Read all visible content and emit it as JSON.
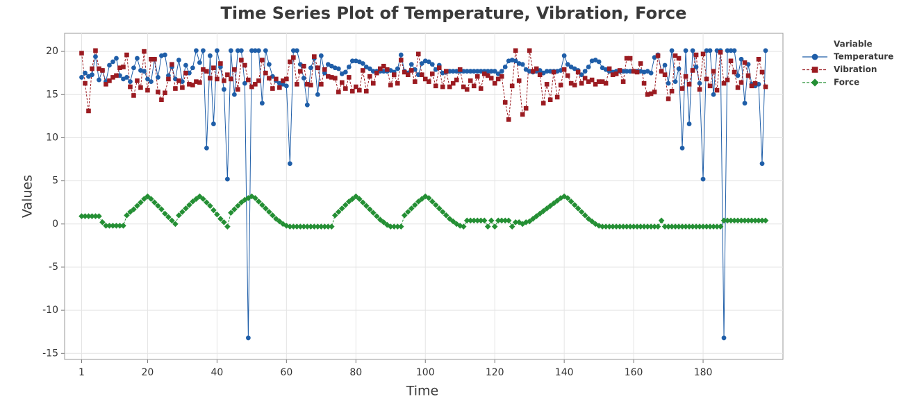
{
  "chart_data": {
    "type": "line",
    "title": "Time Series Plot of Temperature, Vibration, Force",
    "x_label": "Time",
    "y_label": "Values",
    "legend_title": "Variable",
    "legend": "right",
    "grid": true,
    "xlim": [
      -3.9,
      203
    ],
    "xticks": [
      1,
      20,
      40,
      60,
      80,
      100,
      120,
      140,
      160,
      180
    ],
    "ylim": [
      -15.7,
      22.1
    ],
    "yticks": [
      -15,
      -10,
      -5,
      0,
      5,
      10,
      15,
      20
    ],
    "x": [
      1,
      2,
      3,
      4,
      5,
      6,
      7,
      8,
      9,
      10,
      11,
      12,
      13,
      14,
      15,
      16,
      17,
      18,
      19,
      20,
      21,
      22,
      23,
      24,
      25,
      26,
      27,
      28,
      29,
      30,
      31,
      32,
      33,
      34,
      35,
      36,
      37,
      38,
      39,
      40,
      41,
      42,
      43,
      44,
      45,
      46,
      47,
      48,
      49,
      50,
      51,
      52,
      53,
      54,
      55,
      56,
      57,
      58,
      59,
      60,
      61,
      62,
      63,
      64,
      65,
      66,
      67,
      68,
      69,
      70,
      71,
      72,
      73,
      74,
      75,
      76,
      77,
      78,
      79,
      80,
      81,
      82,
      83,
      84,
      85,
      86,
      87,
      88,
      89,
      90,
      91,
      92,
      93,
      94,
      95,
      96,
      97,
      98,
      99,
      100,
      101,
      102,
      103,
      104,
      105,
      106,
      107,
      108,
      109,
      110,
      111,
      112,
      113,
      114,
      115,
      116,
      117,
      118,
      119,
      120,
      121,
      122,
      123,
      124,
      125,
      126,
      127,
      128,
      129,
      130,
      131,
      132,
      133,
      134,
      135,
      136,
      137,
      138,
      139,
      140,
      141,
      142,
      143,
      144,
      145,
      146,
      147,
      148,
      149,
      150,
      151,
      152,
      153,
      154,
      155,
      156,
      157,
      158,
      159,
      160,
      161,
      162,
      163,
      164,
      165,
      166,
      167,
      168,
      169,
      170,
      171,
      172,
      173,
      174,
      175,
      176,
      177,
      178,
      179,
      180,
      181,
      182,
      183,
      184,
      185,
      186,
      187,
      188,
      189,
      190,
      191,
      192,
      193,
      194,
      195,
      196,
      197,
      198
    ],
    "series": [
      {
        "name": "Temperature",
        "color": "#1f5ea8",
        "marker": "circle",
        "dashed": false,
        "values": [
          17.0,
          17.5,
          17.1,
          17.3,
          19.4,
          16.7,
          17.8,
          16.5,
          18.4,
          18.8,
          19.2,
          17.2,
          16.8,
          17.0,
          16.5,
          18.1,
          19.2,
          17.8,
          17.7,
          16.8,
          16.5,
          19.1,
          17.0,
          19.5,
          19.6,
          17.2,
          18.2,
          16.8,
          19.0,
          16.5,
          18.4,
          17.5,
          18.1,
          20.1,
          18.7,
          20.1,
          8.8,
          19.5,
          11.6,
          20.1,
          18.2,
          15.6,
          5.2,
          20.1,
          15.0,
          20.1,
          20.1,
          16.3,
          -13.2,
          20.1,
          20.1,
          20.1,
          14.0,
          20.1,
          18.5,
          17.1,
          16.6,
          16.3,
          16.2,
          16.0,
          7.0,
          20.1,
          20.1,
          18.5,
          16.9,
          13.8,
          18.1,
          19.2,
          15.0,
          19.5,
          17.5,
          18.5,
          18.3,
          18.1,
          18.0,
          17.4,
          17.6,
          18.2,
          18.9,
          18.9,
          18.8,
          18.6,
          18.2,
          18.0,
          17.7,
          17.7,
          17.7,
          17.7,
          17.7,
          17.8,
          17.6,
          18.0,
          19.6,
          17.7,
          17.5,
          18.5,
          17.9,
          17.3,
          18.6,
          18.9,
          18.8,
          18.5,
          17.9,
          18.4,
          17.5,
          17.6,
          17.7,
          17.7,
          17.7,
          17.7,
          17.7,
          17.7,
          17.7,
          17.7,
          17.7,
          17.7,
          17.7,
          17.7,
          17.7,
          17.7,
          17.4,
          17.7,
          18.2,
          18.9,
          19.0,
          18.9,
          18.6,
          18.5,
          17.9,
          17.7,
          17.6,
          17.7,
          17.8,
          17.5,
          17.7,
          17.7,
          17.7,
          17.7,
          17.8,
          19.5,
          18.5,
          18.2,
          18.0,
          17.8,
          17.3,
          17.7,
          18.2,
          18.9,
          19.0,
          18.8,
          18.1,
          17.9,
          17.7,
          17.6,
          17.7,
          17.7,
          17.7,
          17.7,
          17.7,
          17.7,
          17.7,
          17.7,
          17.6,
          17.7,
          17.5,
          19.3,
          19.6,
          17.7,
          18.4,
          16.3,
          20.1,
          16.5,
          18.0,
          8.8,
          20.1,
          11.6,
          20.1,
          18.2,
          16.3,
          5.2,
          20.1,
          20.1,
          15.0,
          20.1,
          20.1,
          -13.2,
          20.1,
          20.1,
          20.1,
          17.2,
          19.1,
          14.0,
          18.5,
          16.2,
          16.0,
          16.2,
          7.0,
          20.1
        ]
      },
      {
        "name": "Vibration",
        "color": "#9b1b21",
        "marker": "square",
        "dashed": true,
        "values": [
          19.8,
          16.3,
          13.1,
          18.0,
          20.1,
          18.0,
          17.8,
          16.2,
          16.6,
          17.0,
          17.2,
          18.1,
          18.2,
          19.6,
          15.9,
          14.9,
          16.6,
          15.8,
          20.0,
          15.5,
          19.1,
          19.1,
          15.3,
          14.4,
          15.2,
          16.8,
          18.5,
          15.7,
          16.6,
          15.8,
          17.5,
          16.2,
          16.1,
          16.5,
          16.4,
          17.9,
          17.7,
          16.9,
          18.1,
          16.8,
          18.6,
          16.6,
          17.3,
          16.8,
          17.9,
          15.6,
          19.0,
          18.4,
          16.7,
          15.9,
          16.2,
          16.6,
          19.0,
          17.5,
          16.9,
          15.7,
          16.8,
          15.8,
          16.6,
          16.8,
          18.8,
          19.3,
          16.2,
          17.7,
          18.3,
          16.2,
          16.1,
          19.4,
          18.1,
          16.2,
          17.9,
          17.1,
          17.0,
          16.9,
          15.3,
          16.4,
          15.7,
          17.0,
          15.4,
          15.9,
          15.5,
          17.8,
          15.4,
          17.1,
          16.3,
          17.5,
          18.0,
          18.3,
          17.9,
          16.1,
          17.3,
          16.3,
          19.0,
          17.6,
          17.3,
          17.8,
          16.5,
          19.7,
          17.3,
          16.8,
          16.5,
          17.4,
          16.0,
          18.1,
          15.9,
          17.7,
          15.9,
          16.3,
          16.7,
          17.9,
          15.9,
          15.6,
          16.6,
          16.0,
          17.1,
          15.7,
          17.4,
          17.2,
          16.9,
          16.3,
          16.8,
          17.1,
          14.1,
          12.1,
          16.0,
          20.1,
          16.6,
          12.7,
          13.4,
          20.1,
          17.7,
          18.0,
          17.3,
          14.0,
          16.2,
          14.4,
          17.6,
          14.7,
          16.1,
          17.9,
          17.2,
          16.3,
          16.1,
          17.6,
          16.3,
          16.9,
          16.5,
          16.7,
          16.2,
          16.5,
          16.5,
          16.3,
          18.0,
          17.3,
          17.4,
          17.8,
          16.5,
          19.2,
          19.2,
          17.7,
          17.6,
          18.6,
          16.3,
          15.0,
          15.1,
          15.3,
          19.5,
          17.7,
          17.3,
          14.5,
          15.4,
          19.5,
          19.2,
          15.7,
          17.1,
          16.2,
          17.8,
          19.6,
          15.6,
          19.7,
          16.8,
          16.0,
          17.7,
          15.5,
          19.9,
          16.3,
          16.7,
          18.9,
          17.6,
          15.8,
          16.4,
          18.7,
          17.2,
          16.0,
          16.3,
          19.1,
          17.6,
          15.9
        ]
      },
      {
        "name": "Force",
        "color": "#248f34",
        "marker": "diamond",
        "dashed": true,
        "values": [
          0.9,
          0.9,
          0.9,
          0.9,
          0.9,
          0.9,
          0.2,
          -0.2,
          -0.2,
          -0.2,
          -0.2,
          -0.2,
          -0.2,
          1.0,
          1.4,
          1.7,
          2.1,
          2.5,
          2.9,
          3.2,
          2.9,
          2.5,
          2.1,
          1.7,
          1.2,
          0.8,
          0.4,
          0.0,
          1.0,
          1.4,
          1.8,
          2.2,
          2.6,
          2.9,
          3.2,
          2.9,
          2.5,
          2.1,
          1.6,
          1.1,
          0.6,
          0.2,
          -0.3,
          1.3,
          1.7,
          2.1,
          2.5,
          2.8,
          3.0,
          3.2,
          3.0,
          2.6,
          2.2,
          1.8,
          1.4,
          1.0,
          0.6,
          0.3,
          0.0,
          -0.2,
          -0.3,
          -0.3,
          -0.3,
          -0.3,
          -0.3,
          -0.3,
          -0.3,
          -0.3,
          -0.3,
          -0.3,
          -0.3,
          -0.3,
          -0.3,
          1.0,
          1.4,
          1.8,
          2.2,
          2.6,
          2.9,
          3.2,
          2.9,
          2.5,
          2.1,
          1.7,
          1.3,
          0.9,
          0.5,
          0.2,
          -0.1,
          -0.3,
          -0.3,
          -0.3,
          -0.3,
          1.0,
          1.4,
          1.8,
          2.2,
          2.6,
          2.9,
          3.2,
          3.0,
          2.6,
          2.2,
          1.8,
          1.4,
          1.0,
          0.6,
          0.3,
          0.0,
          -0.2,
          -0.3,
          0.4,
          0.4,
          0.4,
          0.4,
          0.4,
          0.4,
          -0.3,
          0.4,
          -0.3,
          0.4,
          0.4,
          0.4,
          0.4,
          -0.3,
          0.2,
          0.2,
          0.0,
          0.2,
          0.3,
          0.6,
          0.9,
          1.2,
          1.5,
          1.8,
          2.1,
          2.4,
          2.7,
          3.0,
          3.2,
          3.0,
          2.6,
          2.2,
          1.8,
          1.4,
          1.0,
          0.6,
          0.3,
          0.0,
          -0.2,
          -0.3,
          -0.3,
          -0.3,
          -0.3,
          -0.3,
          -0.3,
          -0.3,
          -0.3,
          -0.3,
          -0.3,
          -0.3,
          -0.3,
          -0.3,
          -0.3,
          -0.3,
          -0.3,
          -0.3,
          0.4,
          -0.3,
          -0.3,
          -0.3,
          -0.3,
          -0.3,
          -0.3,
          -0.3,
          -0.3,
          -0.3,
          -0.3,
          -0.3,
          -0.3,
          -0.3,
          -0.3,
          -0.3,
          -0.3,
          -0.3,
          0.4,
          0.4,
          0.4,
          0.4,
          0.4,
          0.4,
          0.4,
          0.4,
          0.4,
          0.4,
          0.4,
          0.4,
          0.4
        ]
      }
    ]
  }
}
